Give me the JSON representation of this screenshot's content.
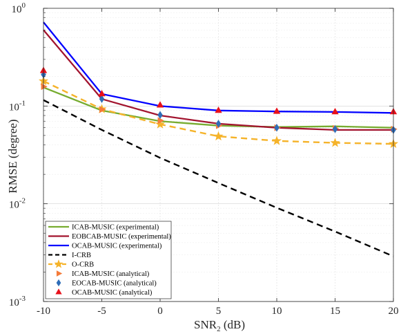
{
  "chart_data": {
    "type": "line",
    "x": [
      -10,
      -5,
      0,
      5,
      10,
      15,
      20
    ],
    "x_tick_labels": [
      "-10",
      "-5",
      "0",
      "5",
      "10",
      "15",
      "20"
    ],
    "xlim": [
      -10,
      20
    ],
    "xlabel": {
      "main": "SNR",
      "sub": "2",
      "unit": " (dB)"
    },
    "ylabel": "RMSE (degree)",
    "yscale": "log",
    "ylim": [
      0.001,
      1
    ],
    "y_tick_labels": [
      {
        "base": "10",
        "exp": "0",
        "value": 1
      },
      {
        "base": "10",
        "exp": "-1",
        "value": 0.1
      },
      {
        "base": "10",
        "exp": "-2",
        "value": 0.01
      },
      {
        "base": "10",
        "exp": "-3",
        "value": 0.001
      }
    ],
    "grid": true,
    "legend_position": "bottom-left",
    "series": [
      {
        "name": "ICAB-MUSIC (experimental)",
        "style": "line",
        "color": "#77ac30",
        "dash": "solid",
        "values": [
          0.155,
          0.09,
          0.07,
          0.063,
          0.061,
          0.062,
          0.06
        ]
      },
      {
        "name": "EOBCAB-MUSIC (experimental)",
        "style": "line",
        "color": "#a2142f",
        "dash": "solid",
        "values": [
          0.6,
          0.118,
          0.08,
          0.066,
          0.06,
          0.057,
          0.057
        ]
      },
      {
        "name": "OCAB-MUSIC (experimental)",
        "style": "line",
        "color": "#0000ff",
        "dash": "solid",
        "values": [
          0.72,
          0.133,
          0.1,
          0.09,
          0.088,
          0.087,
          0.085
        ]
      },
      {
        "name": "I-CRB",
        "style": "line",
        "color": "#000000",
        "dash": "dashed",
        "values": [
          0.115,
          0.057,
          0.0295,
          0.0163,
          0.0091,
          0.0052,
          0.0029
        ]
      },
      {
        "name": "O-CRB",
        "style": "line-marker",
        "color": "#f5b32a",
        "dash": "dashed",
        "marker": "star",
        "values": [
          0.18,
          0.093,
          0.065,
          0.049,
          0.044,
          0.042,
          0.041
        ]
      },
      {
        "name": "ICAB-MUSIC (analytical)",
        "style": "marker",
        "color": "#f47b3a",
        "marker": "triangle-right",
        "values": [
          0.158,
          0.092,
          0.071,
          0.063,
          0.06,
          0.059,
          0.058
        ]
      },
      {
        "name": "EOCAB-MUSIC (analytical)",
        "style": "marker",
        "color": "#2e6db8",
        "marker": "diamond",
        "values": [
          0.21,
          0.118,
          0.081,
          0.066,
          0.06,
          0.058,
          0.057
        ]
      },
      {
        "name": "OCAB-MUSIC (analytical)",
        "style": "marker",
        "color": "#e8101a",
        "marker": "triangle-up",
        "values": [
          0.23,
          0.133,
          0.102,
          0.09,
          0.088,
          0.087,
          0.087
        ]
      }
    ]
  }
}
